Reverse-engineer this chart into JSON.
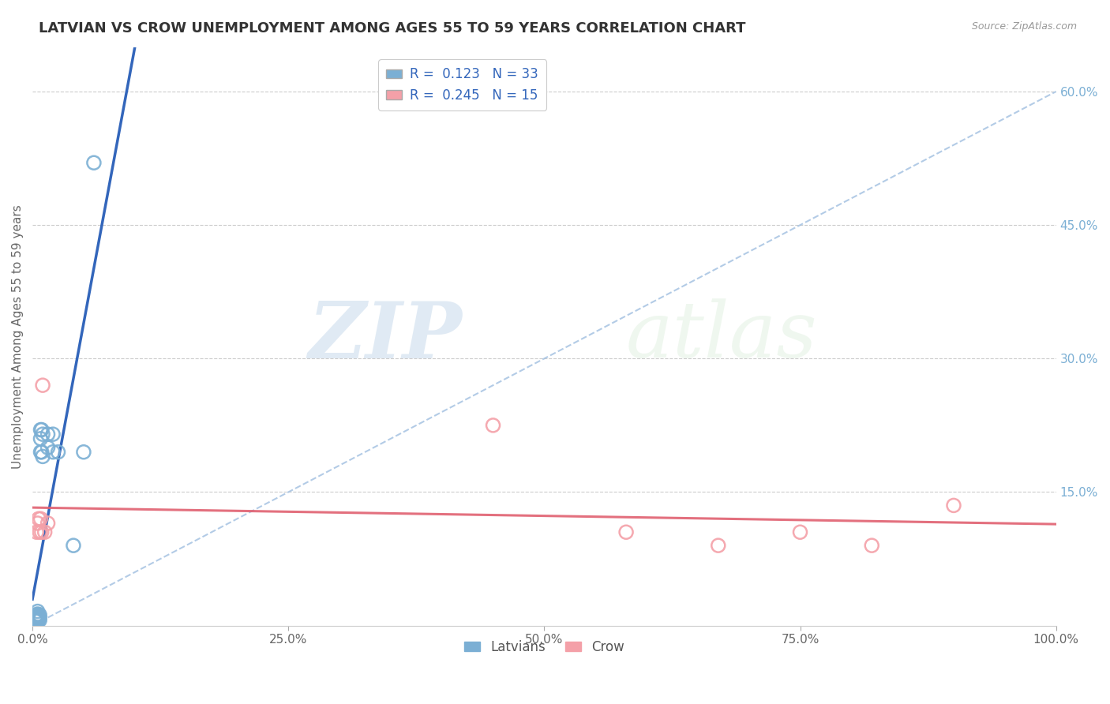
{
  "title": "LATVIAN VS CROW UNEMPLOYMENT AMONG AGES 55 TO 59 YEARS CORRELATION CHART",
  "source": "Source: ZipAtlas.com",
  "ylabel": "Unemployment Among Ages 55 to 59 years",
  "xlim": [
    0,
    1.0
  ],
  "ylim": [
    0,
    0.65
  ],
  "xticks": [
    0.0,
    0.25,
    0.5,
    0.75,
    1.0
  ],
  "xtick_labels": [
    "0.0%",
    "25.0%",
    "50.0%",
    "75.0%",
    "100.0%"
  ],
  "ytick_positions": [
    0.15,
    0.3,
    0.45,
    0.6
  ],
  "ytick_labels": [
    "15.0%",
    "30.0%",
    "45.0%",
    "60.0%"
  ],
  "latvian_R": 0.123,
  "latvian_N": 33,
  "crow_R": 0.245,
  "crow_N": 15,
  "latvian_color": "#7BAFD4",
  "crow_color": "#F4A0A8",
  "trend_latvian_dashed_color": "#A0BFE0",
  "trend_latvian_solid_color": "#3366BB",
  "trend_crow_color": "#E06070",
  "watermark_zip": "ZIP",
  "watermark_atlas": "atlas",
  "latvian_x": [
    0.003,
    0.003,
    0.003,
    0.004,
    0.004,
    0.004,
    0.004,
    0.005,
    0.005,
    0.005,
    0.005,
    0.005,
    0.006,
    0.006,
    0.006,
    0.007,
    0.007,
    0.007,
    0.008,
    0.008,
    0.008,
    0.009,
    0.009,
    0.01,
    0.01,
    0.015,
    0.015,
    0.02,
    0.02,
    0.025,
    0.04,
    0.05,
    0.06
  ],
  "latvian_y": [
    0.005,
    0.008,
    0.01,
    0.005,
    0.007,
    0.009,
    0.012,
    0.005,
    0.008,
    0.01,
    0.013,
    0.016,
    0.006,
    0.009,
    0.012,
    0.006,
    0.009,
    0.012,
    0.195,
    0.21,
    0.22,
    0.195,
    0.22,
    0.19,
    0.215,
    0.2,
    0.215,
    0.195,
    0.215,
    0.195,
    0.09,
    0.195,
    0.52
  ],
  "crow_x": [
    0.004,
    0.005,
    0.006,
    0.007,
    0.008,
    0.009,
    0.01,
    0.012,
    0.015,
    0.45,
    0.58,
    0.67,
    0.75,
    0.82,
    0.9
  ],
  "crow_y": [
    0.105,
    0.115,
    0.12,
    0.105,
    0.12,
    0.105,
    0.27,
    0.105,
    0.115,
    0.225,
    0.105,
    0.09,
    0.105,
    0.09,
    0.135
  ],
  "background_color": "#FFFFFF",
  "grid_color": "#CCCCCC"
}
